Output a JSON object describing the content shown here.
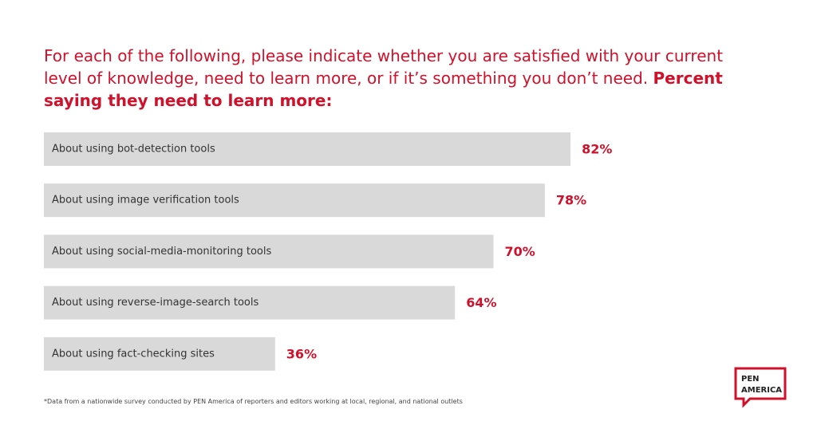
{
  "chart_data": {
    "type": "bar",
    "orientation": "horizontal",
    "title": "For each of the following, please indicate whether you are satisfied with your current level of knowledge, need to learn more, or if it’s something you don’t need.",
    "subtitle": "Percent saying they need to learn more:",
    "categories": [
      "About using bot-detection tools",
      "About using image verification tools",
      "About using social-media-monitoring tools",
      "About using reverse-image-search tools",
      "About using fact-checking sites"
    ],
    "values": [
      82,
      78,
      70,
      64,
      36
    ],
    "value_labels": [
      "82%",
      "78%",
      "70%",
      "64%",
      "36%"
    ],
    "color": "#d9d9d9",
    "note": "*Data from a nationwide survey conducted by PEN America of reporters and editors working at local, regional, and national outlets",
    "logo_lines": [
      "PEN",
      "AMERICA"
    ]
  }
}
